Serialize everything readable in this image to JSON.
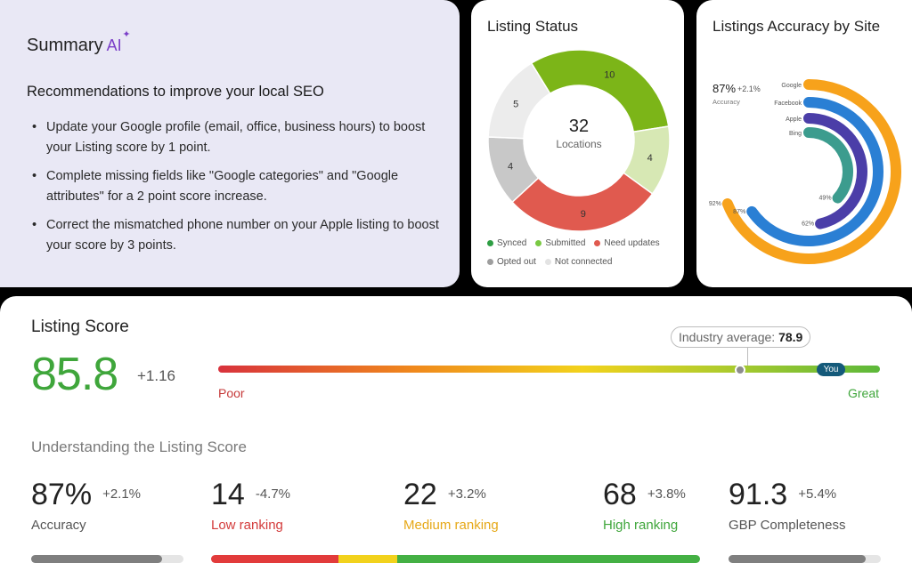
{
  "summary": {
    "title": "Summary",
    "ai_label": "AI",
    "heading": "Recommendations to improve your local SEO",
    "items": [
      "Update your Google profile (email, office, business hours) to boost your Listing score by 1 point.",
      "Complete missing fields like \"Google categories\" and \"Google attributes\" for a 2 point score increase.",
      "Correct the mismatched phone number on your Apple listing to boost your score by 3 points."
    ]
  },
  "status": {
    "title": "Listing Status",
    "total": "32",
    "total_label": "Locations",
    "chart_data": {
      "type": "pie",
      "title": "Listing Status",
      "categories": [
        "Submitted",
        "Synced",
        "Need updates",
        "Opted out",
        "Not connected"
      ],
      "values": [
        10,
        4,
        9,
        4,
        5
      ],
      "colors": [
        "#7cb518",
        "#d7e8b4",
        "#e05a4f",
        "#c8c8c8",
        "#ececec"
      ]
    },
    "legend": [
      {
        "label": "Synced",
        "color": "#2f9e44"
      },
      {
        "label": "Submitted",
        "color": "#7ac943"
      },
      {
        "label": "Need updates",
        "color": "#e05a4f"
      },
      {
        "label": "Opted out",
        "color": "#9e9e9e"
      },
      {
        "label": "Not connected",
        "color": "#e3e3e3"
      }
    ]
  },
  "accuracy": {
    "title": "Listings Accuracy by Site",
    "overall": "87%",
    "overall_delta": "+2.1%",
    "overall_label": "Accuracy",
    "chart_data": {
      "type": "radial-bar",
      "title": "Listings Accuracy by Site",
      "categories": [
        "Google",
        "Facebook",
        "Apple",
        "Bing"
      ],
      "values": [
        92,
        87,
        62,
        49
      ],
      "value_labels": [
        "92%",
        "87%",
        "62%",
        "49%"
      ],
      "colors": [
        "#f7a21b",
        "#2a7fd4",
        "#4b3ea8",
        "#3c9c8e"
      ]
    }
  },
  "score": {
    "title": "Listing Score",
    "value": "85.8",
    "delta": "+1.16",
    "industry_label": "Industry average:",
    "industry_value": "78.9",
    "you_label": "You",
    "poor_label": "Poor",
    "great_label": "Great",
    "understanding": "Understanding the Listing Score",
    "metrics": [
      {
        "value": "87%",
        "delta": "+2.1%",
        "label": "Accuracy",
        "color": "#555555"
      },
      {
        "value": "14",
        "delta": "-4.7%",
        "label": "Low ranking",
        "color": "#d33b3b"
      },
      {
        "value": "22",
        "delta": "+3.2%",
        "label": "Medium ranking",
        "color": "#e6a817"
      },
      {
        "value": "68",
        "delta": "+3.8%",
        "label": "High ranking",
        "color": "#3fa63b"
      },
      {
        "value": "91.3",
        "delta": "+5.4%",
        "label": "GBP Completeness",
        "color": "#555555"
      }
    ]
  }
}
